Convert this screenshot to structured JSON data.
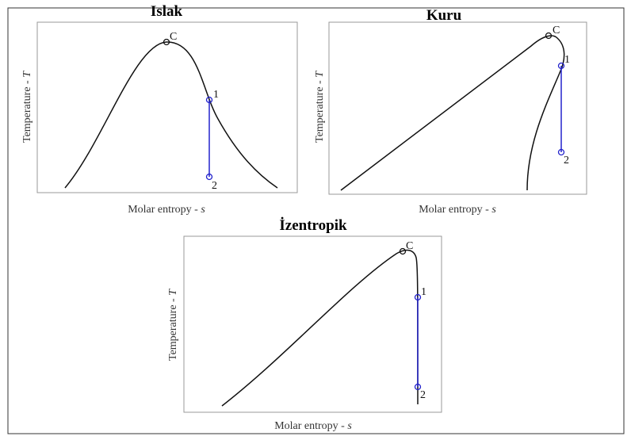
{
  "panels": [
    {
      "title": "Islak",
      "y_label": {
        "text": "Temperature - ",
        "symbol": "T"
      },
      "x_label": {
        "text": "Molar entropy - ",
        "symbol": "s"
      },
      "points": [
        "C",
        "1",
        "2"
      ]
    },
    {
      "title": "Kuru",
      "y_label": {
        "text": "Temperature - ",
        "symbol": "T"
      },
      "x_label": {
        "text": "Molar entropy - ",
        "symbol": "s"
      },
      "points": [
        "C",
        "1",
        "2"
      ]
    },
    {
      "title": "İzentropik",
      "y_label": {
        "text": "Temperature - ",
        "symbol": "T"
      },
      "x_label": {
        "text": "Molar entropy - ",
        "symbol": "s"
      },
      "points": [
        "C",
        "1",
        "2"
      ]
    }
  ]
}
